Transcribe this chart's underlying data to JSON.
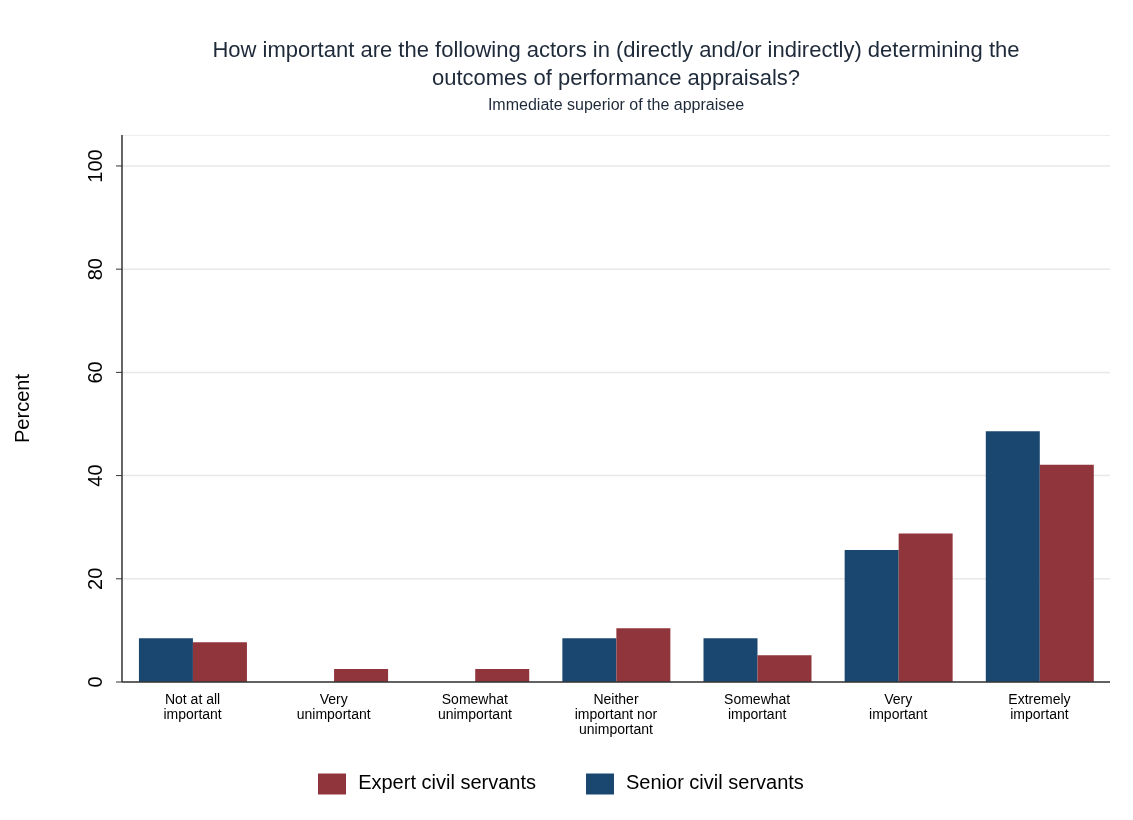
{
  "chart_data": {
    "type": "bar",
    "title": "How important are the following actors in (directly and/or indirectly) determining the outcomes of performance appraisals?",
    "subtitle": "Immediate superior of the appraisee",
    "ylabel": "Percent",
    "categories": [
      "Not at all important",
      "Very unimportant",
      "Somewhat unimportant",
      "Neither important nor unimportant",
      "Somewhat important",
      "Very important",
      "Extremely important"
    ],
    "series": [
      {
        "name": "Senior civil servants",
        "color": "#1a476f",
        "values": [
          8.5,
          null,
          null,
          8.5,
          8.5,
          25.6,
          48.6
        ]
      },
      {
        "name": "Expert civil servants",
        "color": "#90353b",
        "values": [
          7.7,
          2.5,
          2.5,
          10.4,
          5.2,
          28.8,
          42.1
        ]
      }
    ],
    "ylim": [
      0,
      106
    ],
    "yticks": [
      0,
      20,
      40,
      60,
      80,
      100
    ],
    "grid": "y",
    "legend": "bottom"
  }
}
